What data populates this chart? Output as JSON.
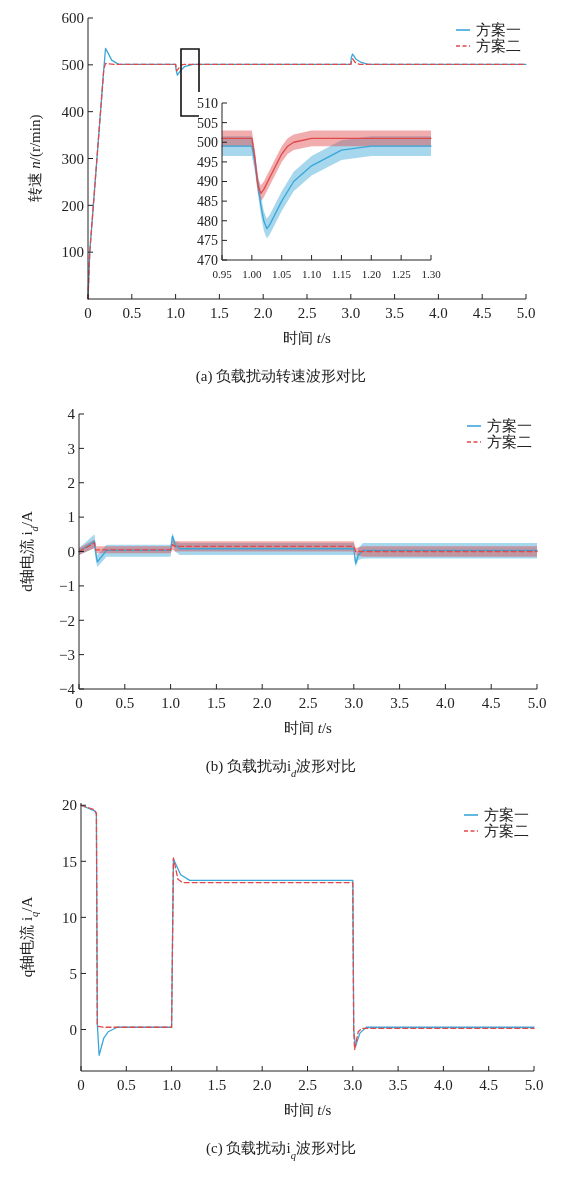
{
  "chart_data": [
    {
      "type": "line",
      "title": "(a) 负载扰动转速波形对比",
      "xlabel": "时间 *t*/s",
      "ylabel": "转速 *n*/(r/min)",
      "xlim": [
        0,
        5
      ],
      "ylim": [
        0,
        600
      ],
      "xticks": [
        0,
        0.5,
        {
          "value": 1,
          "label": "1.0"
        },
        1.5,
        {
          "value": 2,
          "label": "2.0"
        },
        2.5,
        {
          "value": 3,
          "label": "3.0"
        },
        3.5,
        {
          "value": 4,
          "label": "4.0"
        },
        4.5,
        {
          "value": 5,
          "label": "5.0"
        }
      ],
      "yticks": [
        100,
        200,
        300,
        400,
        500,
        600
      ],
      "legend": "top right",
      "series": [
        {
          "name": "方案一",
          "color": "#3aa6d8",
          "line_style": "solid",
          "x": [
            0,
            0.02,
            0.18,
            0.2,
            0.23,
            0.27,
            0.35,
            1.0,
            1.005,
            1.02,
            1.05,
            1.1,
            1.2,
            3.0,
            3.005,
            3.02,
            3.06,
            3.12,
            3.2,
            5.0
          ],
          "values": [
            0,
            100,
            490,
            535,
            525,
            510,
            501,
            501,
            490,
            478,
            486,
            496,
            501,
            501,
            515,
            523,
            512,
            505,
            501,
            501
          ]
        },
        {
          "name": "方案二",
          "color": "#e0484a",
          "line_style": "dashed",
          "x": [
            0,
            0.02,
            0.18,
            0.2,
            0.3,
            1.0,
            1.005,
            1.013,
            1.04,
            1.07,
            1.1,
            3.0,
            3.01,
            3.02,
            3.05,
            3.1,
            5.0
          ],
          "values": [
            0,
            100,
            490,
            503,
            501,
            501,
            495,
            487,
            494,
            500,
            501,
            501,
            508,
            513,
            505,
            501,
            501
          ]
        }
      ]
    },
    {
      "type": "line",
      "xlim": [
        0.95,
        1.3
      ],
      "ylim": [
        470,
        510
      ],
      "xticks": [
        0.95,
        {
          "value": 1,
          "label": "1.00"
        },
        1.05,
        {
          "value": 1.1,
          "label": "1.10"
        },
        1.15,
        {
          "value": 1.2,
          "label": "1.20"
        },
        1.25,
        {
          "value": 1.3,
          "label": "1.30"
        }
      ],
      "yticks": [
        470,
        475,
        480,
        485,
        490,
        495,
        500,
        505,
        510
      ],
      "series": [
        {
          "color": "#3aa6d8",
          "x": [
            0.95,
            1.0,
            1.005,
            1.015,
            1.02,
            1.025,
            1.03,
            1.04,
            1.05,
            1.07,
            1.1,
            1.15,
            1.2,
            1.25,
            1.3
          ],
          "values": [
            499,
            499,
            495,
            484,
            480,
            478,
            479,
            482,
            485,
            490,
            494,
            498,
            499,
            499,
            499
          ],
          "lower": [
            496.5,
            496.5,
            492.5,
            481.5,
            477.5,
            475.5,
            476.5,
            479.5,
            482.5,
            487.5,
            491.5,
            495.5,
            496.5,
            496.5,
            496.5
          ],
          "upper": [
            501.5,
            501.5,
            497.5,
            486.5,
            482.5,
            480.5,
            481.5,
            484.5,
            487.5,
            492.5,
            496.5,
            500.5,
            501.5,
            501.5,
            501.5
          ]
        },
        {
          "color": "#e0484a",
          "x": [
            0.95,
            1.0,
            1.005,
            1.01,
            1.015,
            1.02,
            1.03,
            1.04,
            1.05,
            1.06,
            1.07,
            1.1,
            1.2,
            1.3
          ],
          "values": [
            501,
            501,
            496,
            489,
            487,
            488,
            491,
            494,
            497,
            499,
            500,
            501,
            501,
            501
          ],
          "lower": [
            499,
            499,
            494,
            487,
            485,
            486,
            489,
            492,
            495,
            497,
            498,
            499,
            499,
            499
          ],
          "upper": [
            503,
            503,
            498,
            491,
            489,
            490,
            493,
            496,
            499,
            501,
            502,
            503,
            503,
            503
          ]
        }
      ]
    },
    {
      "type": "line",
      "title": "(b) 负载扰动i$_{d}$波形对比",
      "xlabel": "时间 *t*/s",
      "ylabel": "d轴电流 i$_{d}$/A",
      "xlim": [
        0,
        5
      ],
      "ylim": [
        -4,
        4
      ],
      "xticks": [
        0,
        0.5,
        {
          "value": 1,
          "label": "1.0"
        },
        1.5,
        {
          "value": 2,
          "label": "2.0"
        },
        2.5,
        {
          "value": 3,
          "label": "3.0"
        },
        3.5,
        {
          "value": 4,
          "label": "4.0"
        },
        4.5,
        {
          "value": 5,
          "label": "5.0"
        }
      ],
      "yticks": [
        {
          "value": -4,
          "label": "−4"
        },
        {
          "value": -3,
          "label": "−3"
        },
        {
          "value": -2,
          "label": "−2"
        },
        {
          "value": -1,
          "label": "−1"
        },
        0,
        1,
        2,
        3,
        4
      ],
      "legend": "top right",
      "series": [
        {
          "name": "方案一",
          "color": "#3aa6d8",
          "line_style": "solid",
          "x": [
            0,
            0.17,
            0.18,
            0.2,
            0.3,
            1.0,
            1.02,
            1.05,
            1.1,
            3.0,
            3.02,
            3.05,
            3.1,
            5.0
          ],
          "values": [
            0,
            0.3,
            0.0,
            -0.3,
            0.03,
            0.03,
            0.45,
            0.2,
            0.08,
            0.08,
            -0.35,
            -0.1,
            0.03,
            0.03
          ],
          "lower": [
            -0.1,
            0.1,
            -0.2,
            -0.45,
            -0.15,
            -0.15,
            0.3,
            0.0,
            -0.1,
            -0.1,
            -0.45,
            -0.25,
            -0.2,
            -0.2
          ],
          "upper": [
            0.1,
            0.5,
            0.1,
            -0.1,
            0.2,
            0.2,
            0.55,
            0.3,
            0.25,
            0.25,
            -0.2,
            0.1,
            0.25,
            0.25
          ]
        },
        {
          "name": "方案二",
          "color": "#e0484a",
          "line_style": "dashed",
          "x": [
            0,
            0.17,
            0.18,
            0.3,
            1.0,
            1.02,
            1.05,
            3.0,
            3.02,
            3.1,
            5.0
          ],
          "values": [
            0,
            0.25,
            0.05,
            0.05,
            0.05,
            0.2,
            0.15,
            0.15,
            0.0,
            0.0,
            0.0
          ],
          "lower": [
            -0.1,
            0.1,
            -0.05,
            -0.05,
            -0.05,
            0.05,
            0.0,
            0.0,
            -0.1,
            -0.15,
            -0.15
          ],
          "upper": [
            0.1,
            0.35,
            0.15,
            0.15,
            0.15,
            0.35,
            0.3,
            0.3,
            0.1,
            0.15,
            0.15
          ]
        }
      ]
    },
    {
      "type": "line",
      "title": "(c) 负载扰动i$_{q}$波形对比",
      "xlabel": "时间 *t*/s",
      "ylabel": "q轴电流 i$_{q}$/A",
      "xlim": [
        0,
        5
      ],
      "ylim": [
        -3.7,
        20.2
      ],
      "xticks": [
        0,
        0.5,
        {
          "value": 1,
          "label": "1.0"
        },
        1.5,
        {
          "value": 2,
          "label": "2.0"
        },
        2.5,
        {
          "value": 3,
          "label": "3.0"
        },
        3.5,
        {
          "value": 4,
          "label": "4.0"
        },
        4.5,
        {
          "value": 5,
          "label": "5.0"
        }
      ],
      "yticks": [
        0,
        5,
        10,
        15,
        20
      ],
      "legend": "top right",
      "series": [
        {
          "name": "方案一",
          "color": "#3aa6d8",
          "line_style": "solid",
          "x": [
            0,
            0.15,
            0.17,
            0.18,
            0.2,
            0.25,
            0.3,
            0.4,
            1.0,
            1.02,
            1.1,
            1.2,
            3.0,
            3.01,
            3.03,
            3.08,
            3.15,
            5.0
          ],
          "values": [
            20,
            19.5,
            19.2,
            0.5,
            -2.3,
            -0.8,
            -0.2,
            0.2,
            0.2,
            15.2,
            13.8,
            13.3,
            13.3,
            0,
            -1.5,
            -0.3,
            0.2,
            0.2
          ]
        },
        {
          "name": "方案二",
          "color": "#e0484a",
          "line_style": "dashed",
          "x": [
            0,
            0.15,
            0.17,
            0.18,
            0.25,
            1.0,
            1.02,
            1.07,
            1.12,
            3.0,
            3.01,
            3.02,
            3.06,
            3.1,
            5.0
          ],
          "values": [
            20,
            19.6,
            19.3,
            0.3,
            0.2,
            0.2,
            15.3,
            13.4,
            13.1,
            13.1,
            0,
            -1.8,
            -0.2,
            0.1,
            0.1
          ]
        }
      ]
    }
  ]
}
